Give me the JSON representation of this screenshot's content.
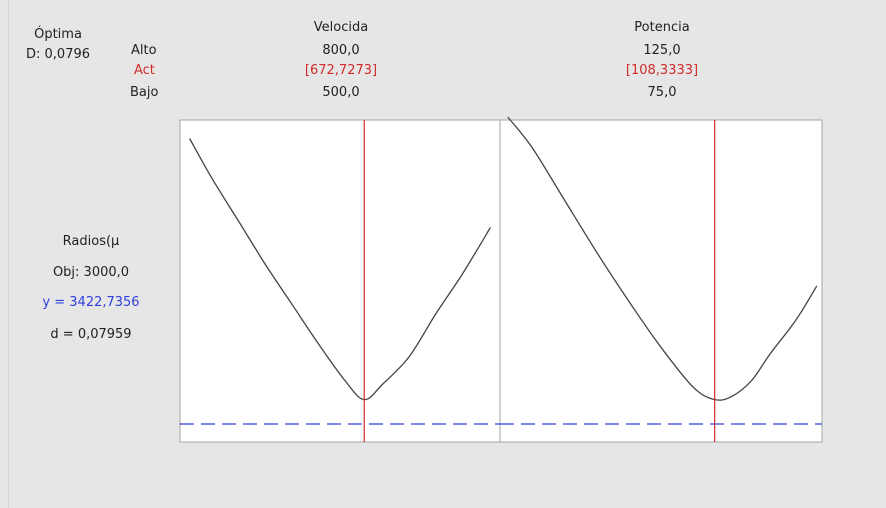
{
  "header": {
    "optimal_label": "Óptima",
    "d_label": "D: 0,0796",
    "high_label": "Alto",
    "current_label": "Act",
    "low_label": "Bajo"
  },
  "response": {
    "name": "Radios(µ",
    "target": "Obj: 3000,0",
    "y_value": "y = 3422,7356",
    "d_value": "d = 0,07959"
  },
  "colors": {
    "current": "#d12b2b",
    "predicted": "#2f3fe0",
    "curve": "#444444",
    "panel": "#ffffff"
  },
  "chart_data": {
    "type": "line",
    "title": "",
    "target_y": 3000.0,
    "predicted_y": 3422.7356,
    "factors": [
      {
        "name": "Velocida",
        "high": "800,0",
        "current": "[672,7273]",
        "low": "500,0",
        "range": [
          500.0,
          800.0
        ],
        "current_value": 672.7273,
        "curve": {
          "x": [
            509,
            530,
            555,
            580,
            605,
            630,
            655,
            672.7273,
            690,
            715,
            740,
            765,
            791
          ],
          "d": [
            0.93,
            0.8,
            0.66,
            0.52,
            0.39,
            0.26,
            0.14,
            0.0796,
            0.13,
            0.22,
            0.36,
            0.49,
            0.64
          ]
        }
      },
      {
        "name": "Potencia",
        "high": "125,0",
        "current": "[108,3333]",
        "low": "75,0",
        "range": [
          75.0,
          125.0
        ],
        "current_value": 108.3333,
        "curve": {
          "x": [
            76.2,
            80,
            85,
            90,
            95,
            100,
            105,
            108.3333,
            111,
            114,
            117,
            121,
            124.2
          ],
          "d": [
            1.0,
            0.9,
            0.73,
            0.56,
            0.4,
            0.25,
            0.12,
            0.0796,
            0.09,
            0.14,
            0.23,
            0.34,
            0.45
          ]
        }
      }
    ]
  }
}
